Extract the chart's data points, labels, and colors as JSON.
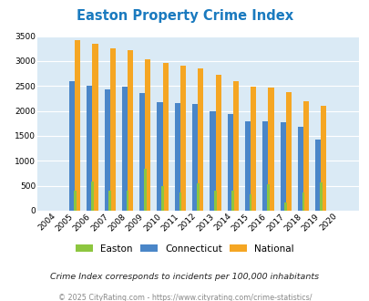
{
  "title": "Easton Property Crime Index",
  "years": [
    2004,
    2005,
    2006,
    2007,
    2008,
    2009,
    2010,
    2011,
    2012,
    2013,
    2014,
    2015,
    2016,
    2017,
    2018,
    2019,
    2020
  ],
  "easton": [
    0,
    400,
    580,
    400,
    400,
    850,
    500,
    360,
    540,
    400,
    400,
    330,
    530,
    160,
    360,
    570,
    0
  ],
  "connecticut": [
    0,
    2600,
    2510,
    2440,
    2480,
    2360,
    2180,
    2160,
    2140,
    2000,
    1930,
    1800,
    1800,
    1770,
    1680,
    1420,
    0
  ],
  "national": [
    0,
    3420,
    3340,
    3260,
    3210,
    3040,
    2960,
    2910,
    2860,
    2720,
    2600,
    2490,
    2470,
    2380,
    2200,
    2100,
    0
  ],
  "easton_color": "#8dc63f",
  "connecticut_color": "#4a86c8",
  "national_color": "#f5a623",
  "bg_color": "#daeaf5",
  "ylim": [
    0,
    3500
  ],
  "yticks": [
    0,
    500,
    1000,
    1500,
    2000,
    2500,
    3000,
    3500
  ],
  "subtitle": "Crime Index corresponds to incidents per 100,000 inhabitants",
  "footer": "© 2025 CityRating.com - https://www.cityrating.com/crime-statistics/",
  "bar_width": 0.32
}
